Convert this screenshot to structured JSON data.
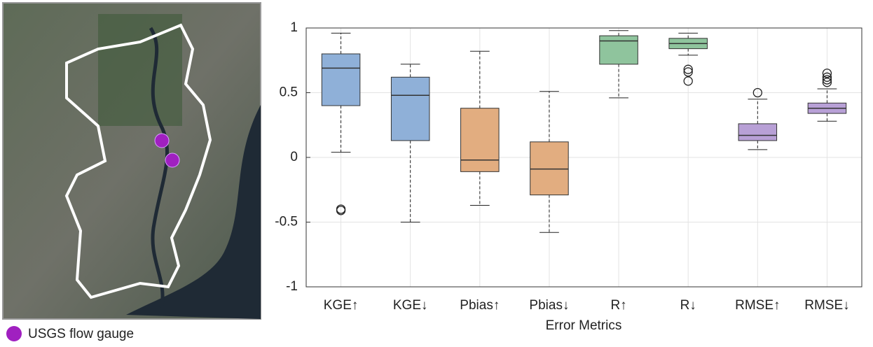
{
  "map": {
    "legend": "USGS flow gauge"
  },
  "chart_data": {
    "type": "box",
    "xlabel": "Error Metrics",
    "categories": [
      "KGE↑",
      "KGE↓",
      "Pbias↑",
      "Pbias↓",
      "R↑",
      "R↓",
      "RMSE↑",
      "RMSE↓"
    ],
    "colors": [
      "#8fb0d8",
      "#8fb0d8",
      "#e2ad80",
      "#e2ad80",
      "#8fc49d",
      "#8fc49d",
      "#b8a0d6",
      "#b8a0d6"
    ],
    "boxes": [
      {
        "whisker_low": 0.04,
        "q1": 0.4,
        "median": 0.69,
        "q3": 0.8,
        "whisker_high": 0.96,
        "outliers": [
          -0.4,
          -0.41
        ]
      },
      {
        "whisker_low": -0.5,
        "q1": 0.13,
        "median": 0.48,
        "q3": 0.62,
        "whisker_high": 0.72,
        "outliers": []
      },
      {
        "whisker_low": -0.37,
        "q1": -0.11,
        "median": -0.02,
        "q3": 0.38,
        "whisker_high": 0.82,
        "outliers": []
      },
      {
        "whisker_low": -0.58,
        "q1": -0.29,
        "median": -0.09,
        "q3": 0.12,
        "whisker_high": 0.51,
        "outliers": []
      },
      {
        "whisker_low": 0.46,
        "q1": 0.72,
        "median": 0.9,
        "q3": 0.94,
        "whisker_high": 0.98,
        "outliers": []
      },
      {
        "whisker_low": 0.79,
        "q1": 0.84,
        "median": 0.88,
        "q3": 0.92,
        "whisker_high": 0.96,
        "outliers": [
          0.68,
          0.66,
          0.59
        ]
      },
      {
        "whisker_low": 0.06,
        "q1": 0.13,
        "median": 0.17,
        "q3": 0.26,
        "whisker_high": 0.45,
        "outliers": [
          0.5
        ]
      },
      {
        "whisker_low": 0.28,
        "q1": 0.34,
        "median": 0.38,
        "q3": 0.42,
        "whisker_high": 0.53,
        "outliers": [
          0.65,
          0.62,
          0.6,
          0.58
        ]
      }
    ],
    "ylim": [
      -1,
      1
    ],
    "yticks": [
      -1,
      -0.5,
      0,
      0.5,
      1
    ],
    "grid": true
  }
}
